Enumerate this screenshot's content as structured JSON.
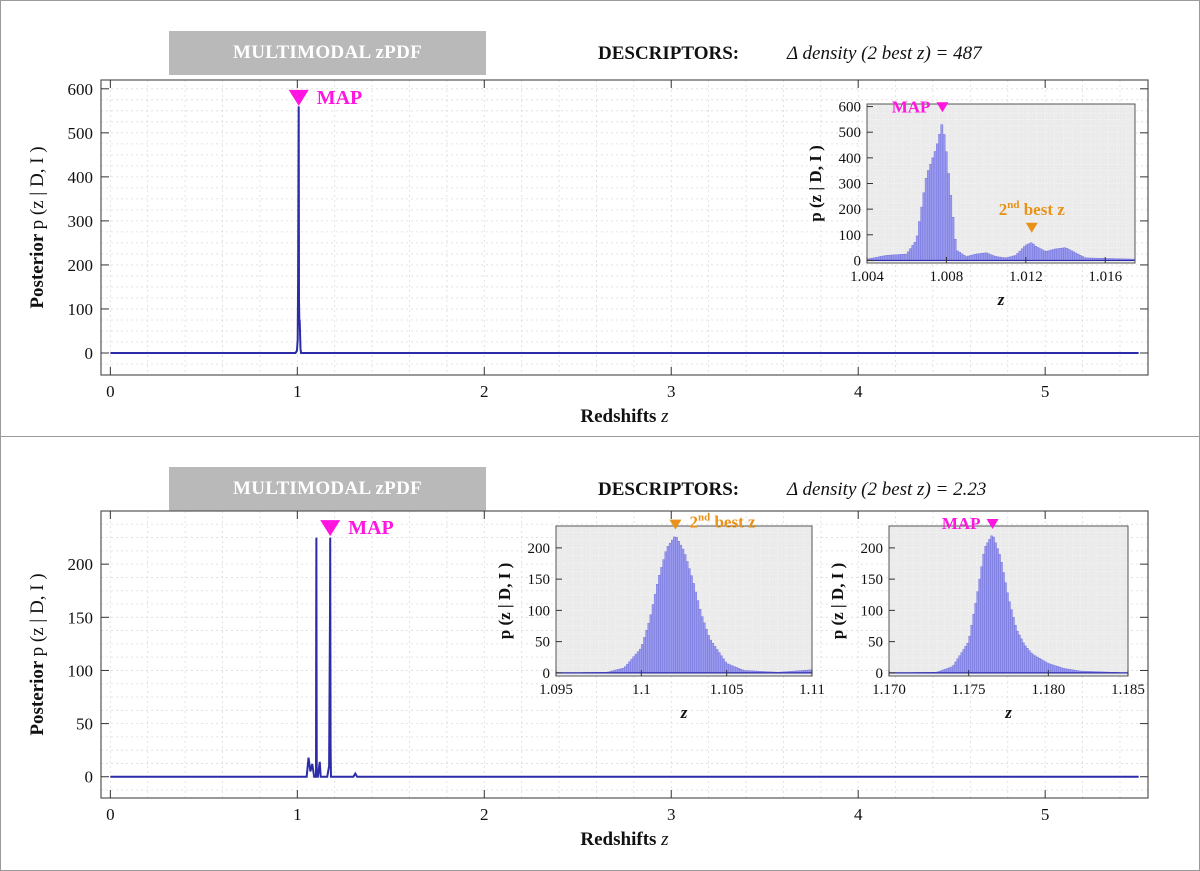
{
  "panels": [
    {
      "banner": "MULTIMODAL zPDF",
      "descriptors_label": "DESCRIPTORS:",
      "descriptors_value": "Δ density (2 best z) = 487"
    },
    {
      "banner": "MULTIMODAL zPDF",
      "descriptors_label": "DESCRIPTORS:",
      "descriptors_value": "Δ density (2 best z) = 2.23"
    }
  ],
  "colors": {
    "series": "#2c2ca8",
    "hist_fill": "#9999ee",
    "hist_edge": "#6c6cd8",
    "map_marker": "#ff14e0",
    "best_marker": "#e8921a",
    "inset_bg": "#ebebeb"
  },
  "chart_data": [
    {
      "type": "line",
      "xlabel_prefix": "Redshifts",
      "xlabel_var": "z",
      "ylabel_prefix": "Posterior",
      "ylabel_expr": "p (z | D, I )",
      "xlim": [
        -0.05,
        5.55
      ],
      "ylim": [
        -50,
        620
      ],
      "xticks": [
        0,
        1,
        2,
        3,
        4,
        5
      ],
      "yticks": [
        0,
        100,
        200,
        300,
        400,
        500,
        600
      ],
      "grid": true,
      "series": [
        {
          "x": [
            0,
            0.99,
            0.998,
            1.002,
            1.004,
            1.006,
            1.0075,
            1.009,
            1.011,
            1.0125,
            1.014,
            1.017,
            1.02,
            5.5
          ],
          "y": [
            0,
            0,
            5,
            30,
            150,
            380,
            560,
            120,
            70,
            75,
            55,
            10,
            0,
            0
          ]
        }
      ],
      "markers": [
        {
          "label": "MAP",
          "x": 1.0075,
          "y": 575,
          "kind": "map"
        }
      ],
      "insets": [
        {
          "type": "bar",
          "xlabel": "z",
          "ylabel": "p (z | D, I )",
          "xlim": [
            1.004,
            1.0175
          ],
          "ylim": [
            -10,
            610
          ],
          "xticks": [
            1.004,
            1.008,
            1.012,
            1.016
          ],
          "xtick_labels": [
            "1.004",
            "1.008",
            "1.012",
            "1.016"
          ],
          "yticks": [
            0,
            100,
            200,
            300,
            400,
            500,
            600
          ],
          "x": [
            1.004,
            1.005,
            1.006,
            1.0065,
            1.007,
            1.0075,
            1.0078,
            1.008,
            1.0085,
            1.009,
            1.0095,
            1.01,
            1.0105,
            1.011,
            1.0115,
            1.012,
            1.0123,
            1.0125,
            1.013,
            1.0135,
            1.014,
            1.0145,
            1.015,
            1.0175
          ],
          "y": [
            5,
            20,
            25,
            80,
            330,
            440,
            540,
            420,
            40,
            15,
            25,
            30,
            15,
            10,
            20,
            60,
            70,
            55,
            35,
            45,
            50,
            30,
            10,
            5
          ],
          "markers": [
            {
              "label": "MAP",
              "x": 1.0078,
              "y": 570,
              "kind": "map"
            },
            {
              "label": "2nd best z",
              "x": 1.0123,
              "y": 100,
              "kind": "best"
            }
          ]
        }
      ]
    },
    {
      "type": "line",
      "xlabel_prefix": "Redshifts",
      "xlabel_var": "z",
      "ylabel_prefix": "Posterior",
      "ylabel_expr": "p (z | D, I )",
      "xlim": [
        -0.05,
        5.55
      ],
      "ylim": [
        -20,
        250
      ],
      "xticks": [
        0,
        1,
        2,
        3,
        4,
        5
      ],
      "yticks": [
        0,
        50,
        100,
        150,
        200
      ],
      "grid": true,
      "series": [
        {
          "x": [
            0,
            1.05,
            1.06,
            1.07,
            1.08,
            1.09,
            1.1,
            1.101,
            1.102,
            1.103,
            1.104,
            1.11,
            1.12,
            1.125,
            1.13,
            1.14,
            1.16,
            1.17,
            1.175,
            1.176,
            1.177,
            1.178,
            1.18,
            1.19,
            1.3,
            1.31,
            1.32,
            5.5
          ],
          "y": [
            0,
            0,
            18,
            5,
            12,
            0,
            0,
            150,
            225,
            100,
            0,
            0,
            14,
            0,
            0,
            0,
            0,
            10,
            160,
            225,
            120,
            30,
            0,
            0,
            0,
            3,
            0,
            0
          ]
        }
      ],
      "markers": [
        {
          "label": "MAP",
          "x": 1.176,
          "y": 232,
          "kind": "map"
        }
      ],
      "insets": [
        {
          "type": "bar",
          "xlabel": "z",
          "ylabel": "p (z | D, I )",
          "xlim": [
            1.095,
            1.11
          ],
          "ylim": [
            -5,
            235
          ],
          "xticks": [
            1.095,
            1.1,
            1.105,
            1.11
          ],
          "xtick_labels": [
            "1.095",
            "1.1",
            "1.105",
            "1.11"
          ],
          "yticks": [
            0,
            50,
            100,
            150,
            200
          ],
          "x": [
            1.095,
            1.098,
            1.099,
            1.1,
            1.1005,
            1.101,
            1.1015,
            1.102,
            1.1025,
            1.103,
            1.1035,
            1.104,
            1.105,
            1.106,
            1.108,
            1.11
          ],
          "y": [
            0,
            1,
            8,
            40,
            85,
            150,
            200,
            220,
            195,
            150,
            95,
            55,
            15,
            4,
            1,
            5
          ],
          "markers": [
            {
              "label": "2nd best z",
              "x": 1.102,
              "y": 226,
              "kind": "best"
            }
          ]
        },
        {
          "type": "bar",
          "xlabel": "z",
          "ylabel": "p (z | D, I )",
          "xlim": [
            1.17,
            1.185
          ],
          "ylim": [
            -5,
            235
          ],
          "xticks": [
            1.17,
            1.175,
            1.18,
            1.185
          ],
          "xtick_labels": [
            "1.170",
            "1.175",
            "1.180",
            "1.185"
          ],
          "yticks": [
            0,
            50,
            100,
            150,
            200
          ],
          "x": [
            1.17,
            1.173,
            1.174,
            1.175,
            1.1755,
            1.176,
            1.1765,
            1.177,
            1.1775,
            1.178,
            1.1785,
            1.179,
            1.18,
            1.181,
            1.182,
            1.185
          ],
          "y": [
            0,
            1,
            10,
            50,
            120,
            200,
            222,
            185,
            120,
            70,
            45,
            30,
            15,
            7,
            3,
            0
          ],
          "markers": [
            {
              "label": "MAP",
              "x": 1.1765,
              "y": 227,
              "kind": "map"
            }
          ]
        }
      ]
    }
  ]
}
